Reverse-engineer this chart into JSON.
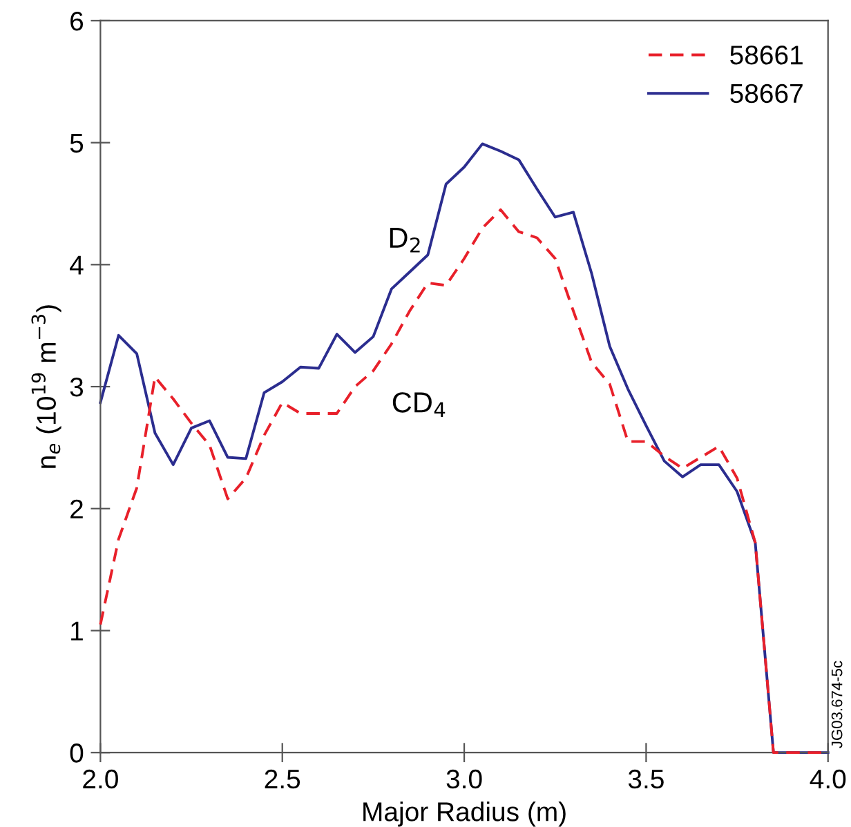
{
  "chart_data": {
    "type": "line",
    "xlabel": "Major Radius (m)",
    "ylabel": "n$_{e}$ (10$^{19}$ m$^{−3}$)",
    "x": [
      2.0,
      2.05,
      2.1,
      2.15,
      2.2,
      2.25,
      2.3,
      2.35,
      2.4,
      2.45,
      2.5,
      2.55,
      2.6,
      2.65,
      2.7,
      2.75,
      2.8,
      2.85,
      2.9,
      2.95,
      3.0,
      3.05,
      3.1,
      3.15,
      3.2,
      3.25,
      3.3,
      3.35,
      3.4,
      3.45,
      3.5,
      3.55,
      3.6,
      3.65,
      3.7,
      3.75,
      3.8,
      3.85,
      3.9,
      3.95,
      4.0
    ],
    "series": [
      {
        "name": "58661",
        "color": "#e8202a",
        "line_style": "dashed",
        "values": [
          1.05,
          1.75,
          2.17,
          3.08,
          2.9,
          2.7,
          2.52,
          2.08,
          2.25,
          2.6,
          2.87,
          2.78,
          2.78,
          2.78,
          3.0,
          3.13,
          3.35,
          3.62,
          3.85,
          3.83,
          4.05,
          4.3,
          4.45,
          4.27,
          4.22,
          4.05,
          3.62,
          3.2,
          3.02,
          2.55,
          2.55,
          2.43,
          2.33,
          2.42,
          2.51,
          2.25,
          1.72,
          0,
          0,
          0,
          0
        ]
      },
      {
        "name": "58667",
        "color": "#2b2d8f",
        "line_style": "solid",
        "values": [
          2.87,
          3.42,
          3.27,
          2.62,
          2.36,
          2.66,
          2.72,
          2.42,
          2.41,
          2.95,
          3.04,
          3.16,
          3.15,
          3.43,
          3.28,
          3.41,
          3.8,
          3.94,
          4.08,
          4.66,
          4.8,
          4.99,
          4.93,
          4.86,
          4.62,
          4.39,
          4.43,
          3.93,
          3.33,
          2.98,
          2.68,
          2.39,
          2.26,
          2.36,
          2.36,
          2.14,
          1.72,
          0,
          0,
          0,
          0
        ]
      }
    ],
    "xlim": [
      2.0,
      4.0
    ],
    "ylim": [
      0,
      6
    ],
    "xticks": [
      {
        "value": 2.0,
        "label": "2.0"
      },
      2.5,
      {
        "value": 3.0,
        "label": "3.0"
      },
      3.5,
      {
        "value": 4.0,
        "label": "4.0"
      }
    ],
    "yticks": [
      0,
      1,
      2,
      3,
      4,
      5,
      6
    ],
    "grid": false,
    "legend": "top right",
    "marker": "none",
    "annotations": [
      "D$_{2}$",
      "CD$_{4}$",
      "JG03.674-5c"
    ]
  }
}
